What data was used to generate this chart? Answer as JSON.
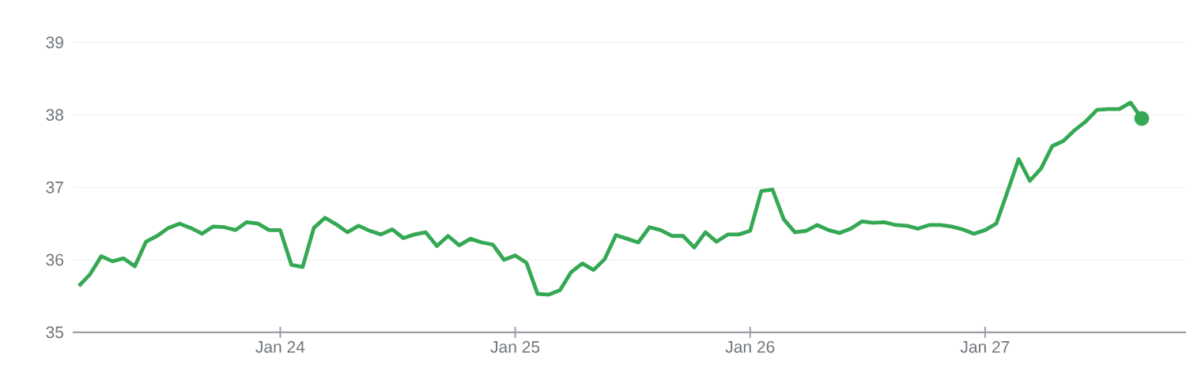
{
  "chart_data": {
    "type": "line",
    "categories": [
      null,
      null,
      null,
      null,
      null,
      null,
      null,
      null,
      null,
      null,
      null,
      null,
      null,
      null,
      null,
      null,
      null,
      null,
      "Jan 24",
      null,
      null,
      null,
      null,
      null,
      null,
      null,
      null,
      null,
      null,
      null,
      null,
      null,
      null,
      null,
      null,
      null,
      null,
      null,
      null,
      "Jan 25",
      null,
      null,
      null,
      null,
      null,
      null,
      null,
      null,
      null,
      null,
      null,
      null,
      null,
      null,
      null,
      null,
      null,
      null,
      null,
      null,
      "Jan 26",
      null,
      null,
      null,
      null,
      null,
      null,
      null,
      null,
      null,
      null,
      null,
      null,
      null,
      null,
      null,
      null,
      null,
      null,
      null,
      null,
      "Jan 27",
      null,
      null,
      null,
      null,
      null,
      null,
      null,
      null,
      null,
      null,
      null,
      null,
      null,
      null
    ],
    "series": [
      {
        "color": "#34a853",
        "values": [
          35.64,
          35.8,
          36.05,
          35.98,
          36.02,
          35.91,
          36.25,
          36.33,
          36.44,
          36.5,
          36.44,
          36.36,
          36.46,
          36.45,
          36.41,
          36.52,
          36.5,
          36.41,
          36.41,
          35.93,
          35.9,
          36.44,
          36.58,
          36.49,
          36.38,
          36.47,
          36.4,
          36.35,
          36.42,
          36.3,
          36.35,
          36.38,
          36.19,
          36.33,
          36.2,
          36.29,
          36.24,
          36.21,
          36.0,
          36.06,
          35.96,
          35.53,
          35.52,
          35.58,
          35.83,
          35.95,
          35.86,
          36.01,
          36.34,
          36.29,
          36.24,
          36.45,
          36.41,
          36.33,
          36.33,
          36.17,
          36.38,
          36.25,
          36.35,
          36.35,
          36.4,
          36.95,
          36.97,
          36.56,
          36.38,
          36.4,
          36.48,
          36.41,
          36.37,
          36.43,
          36.53,
          36.51,
          36.52,
          36.48,
          36.47,
          36.43,
          36.48,
          36.48,
          36.46,
          36.42,
          36.36,
          36.41,
          36.5,
          36.94,
          37.39,
          37.09,
          37.26,
          37.57,
          37.64,
          37.79,
          37.91,
          38.07,
          38.08,
          38.08,
          38.17,
          37.95
        ]
      },
      {
        "type": "scatter",
        "color": "#34a853",
        "marker": "circle",
        "values": [
          null,
          null,
          null,
          null,
          null,
          null,
          null,
          null,
          null,
          null,
          null,
          null,
          null,
          null,
          null,
          null,
          null,
          null,
          null,
          null,
          null,
          null,
          null,
          null,
          null,
          null,
          null,
          null,
          null,
          null,
          null,
          null,
          null,
          null,
          null,
          null,
          null,
          null,
          null,
          null,
          null,
          null,
          null,
          null,
          null,
          null,
          null,
          null,
          null,
          null,
          null,
          null,
          null,
          null,
          null,
          null,
          null,
          null,
          null,
          null,
          null,
          null,
          null,
          null,
          null,
          null,
          null,
          null,
          null,
          null,
          null,
          null,
          null,
          null,
          null,
          null,
          null,
          null,
          null,
          null,
          null,
          null,
          null,
          null,
          null,
          null,
          null,
          null,
          null,
          null,
          null,
          null,
          null,
          null,
          null,
          37.95
        ]
      }
    ],
    "ylim": [
      35,
      39
    ],
    "yticks": [
      35,
      36,
      37,
      38,
      39
    ],
    "grid": "y",
    "line_style": "solid"
  }
}
